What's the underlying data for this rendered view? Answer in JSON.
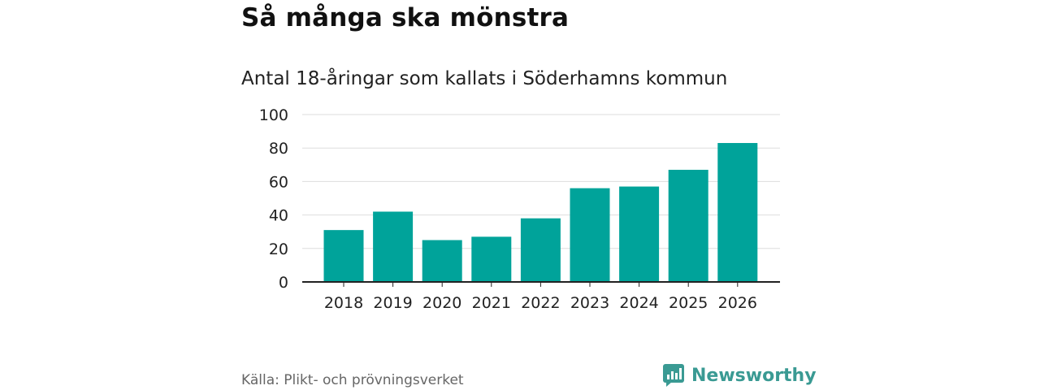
{
  "header": {
    "title": "Så många ska mönstra",
    "subtitle": "Antal 18-åringar som kallats i Söderhamns kommun"
  },
  "footer": {
    "source": "Källa: Plikt- och prövningsverket",
    "brand": "Newsworthy"
  },
  "colors": {
    "bar": "#00a39a",
    "grid": "#dddddd",
    "axis": "#222222",
    "brand": "#3a9a93"
  },
  "icons": {
    "brand_logo": "newsworthy-logo-icon"
  },
  "chart_data": {
    "type": "bar",
    "title": "Så många ska mönstra",
    "subtitle": "Antal 18-åringar som kallats i Söderhamns kommun",
    "xlabel": "",
    "ylabel": "",
    "categories": [
      "2018",
      "2019",
      "2020",
      "2021",
      "2022",
      "2023",
      "2024",
      "2025",
      "2026"
    ],
    "values": [
      31,
      42,
      25,
      27,
      38,
      56,
      57,
      67,
      83
    ],
    "ylim": [
      0,
      100
    ],
    "yticks": [
      0,
      20,
      40,
      60,
      80,
      100
    ],
    "grid": true,
    "legend": "none"
  }
}
